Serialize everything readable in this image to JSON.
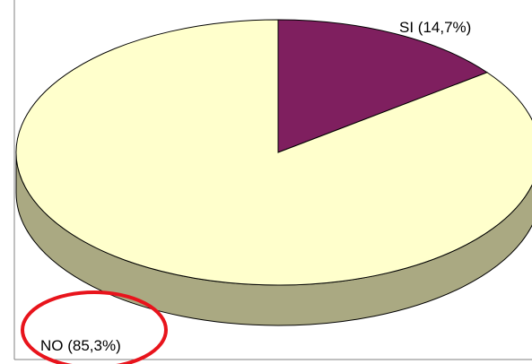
{
  "chart_data": {
    "type": "pie",
    "categories": [
      "SI",
      "NO"
    ],
    "values": [
      14.7,
      85.3
    ],
    "value_labels": [
      "SI (14,7%)",
      "NO (85,3%)"
    ],
    "colors": [
      "#7f1f5f",
      "#ffffcc"
    ],
    "side_color": "#aaa982"
  }
}
